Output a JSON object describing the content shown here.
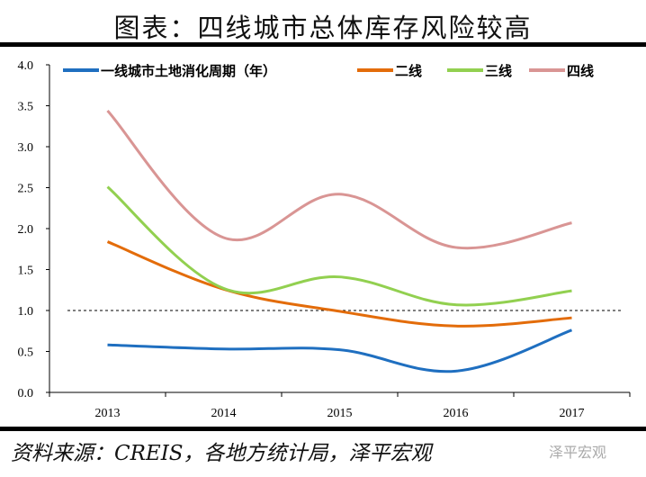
{
  "title": "图表：四线城市总体库存风险较高",
  "source": "资料来源：CREIS，各地方统计局，泽平宏观",
  "watermark": "泽平宏观",
  "chart_data": {
    "type": "line",
    "title": "图表：四线城市总体库存风险较高",
    "categories": [
      "2013",
      "2014",
      "2015",
      "2016",
      "2017"
    ],
    "ylim": [
      0,
      4.0
    ],
    "yticks": [
      "0.0",
      "0.5",
      "1.0",
      "1.5",
      "2.0",
      "2.5",
      "3.0",
      "3.5",
      "4.0"
    ],
    "grid": false,
    "legend": "top",
    "reference_line": 1.0,
    "series": [
      {
        "name": "一线城市土地消化周期（年）",
        "color": "#1f6fc0",
        "values": [
          0.58,
          0.53,
          0.52,
          0.26,
          0.76
        ]
      },
      {
        "name": "二线",
        "color": "#e36c0a",
        "values": [
          1.84,
          1.26,
          0.99,
          0.81,
          0.91
        ]
      },
      {
        "name": "三线",
        "color": "#92d050",
        "values": [
          2.51,
          1.27,
          1.41,
          1.07,
          1.24
        ]
      },
      {
        "name": "四线",
        "color": "#d99594",
        "values": [
          3.44,
          1.89,
          2.42,
          1.77,
          2.07
        ]
      }
    ]
  }
}
